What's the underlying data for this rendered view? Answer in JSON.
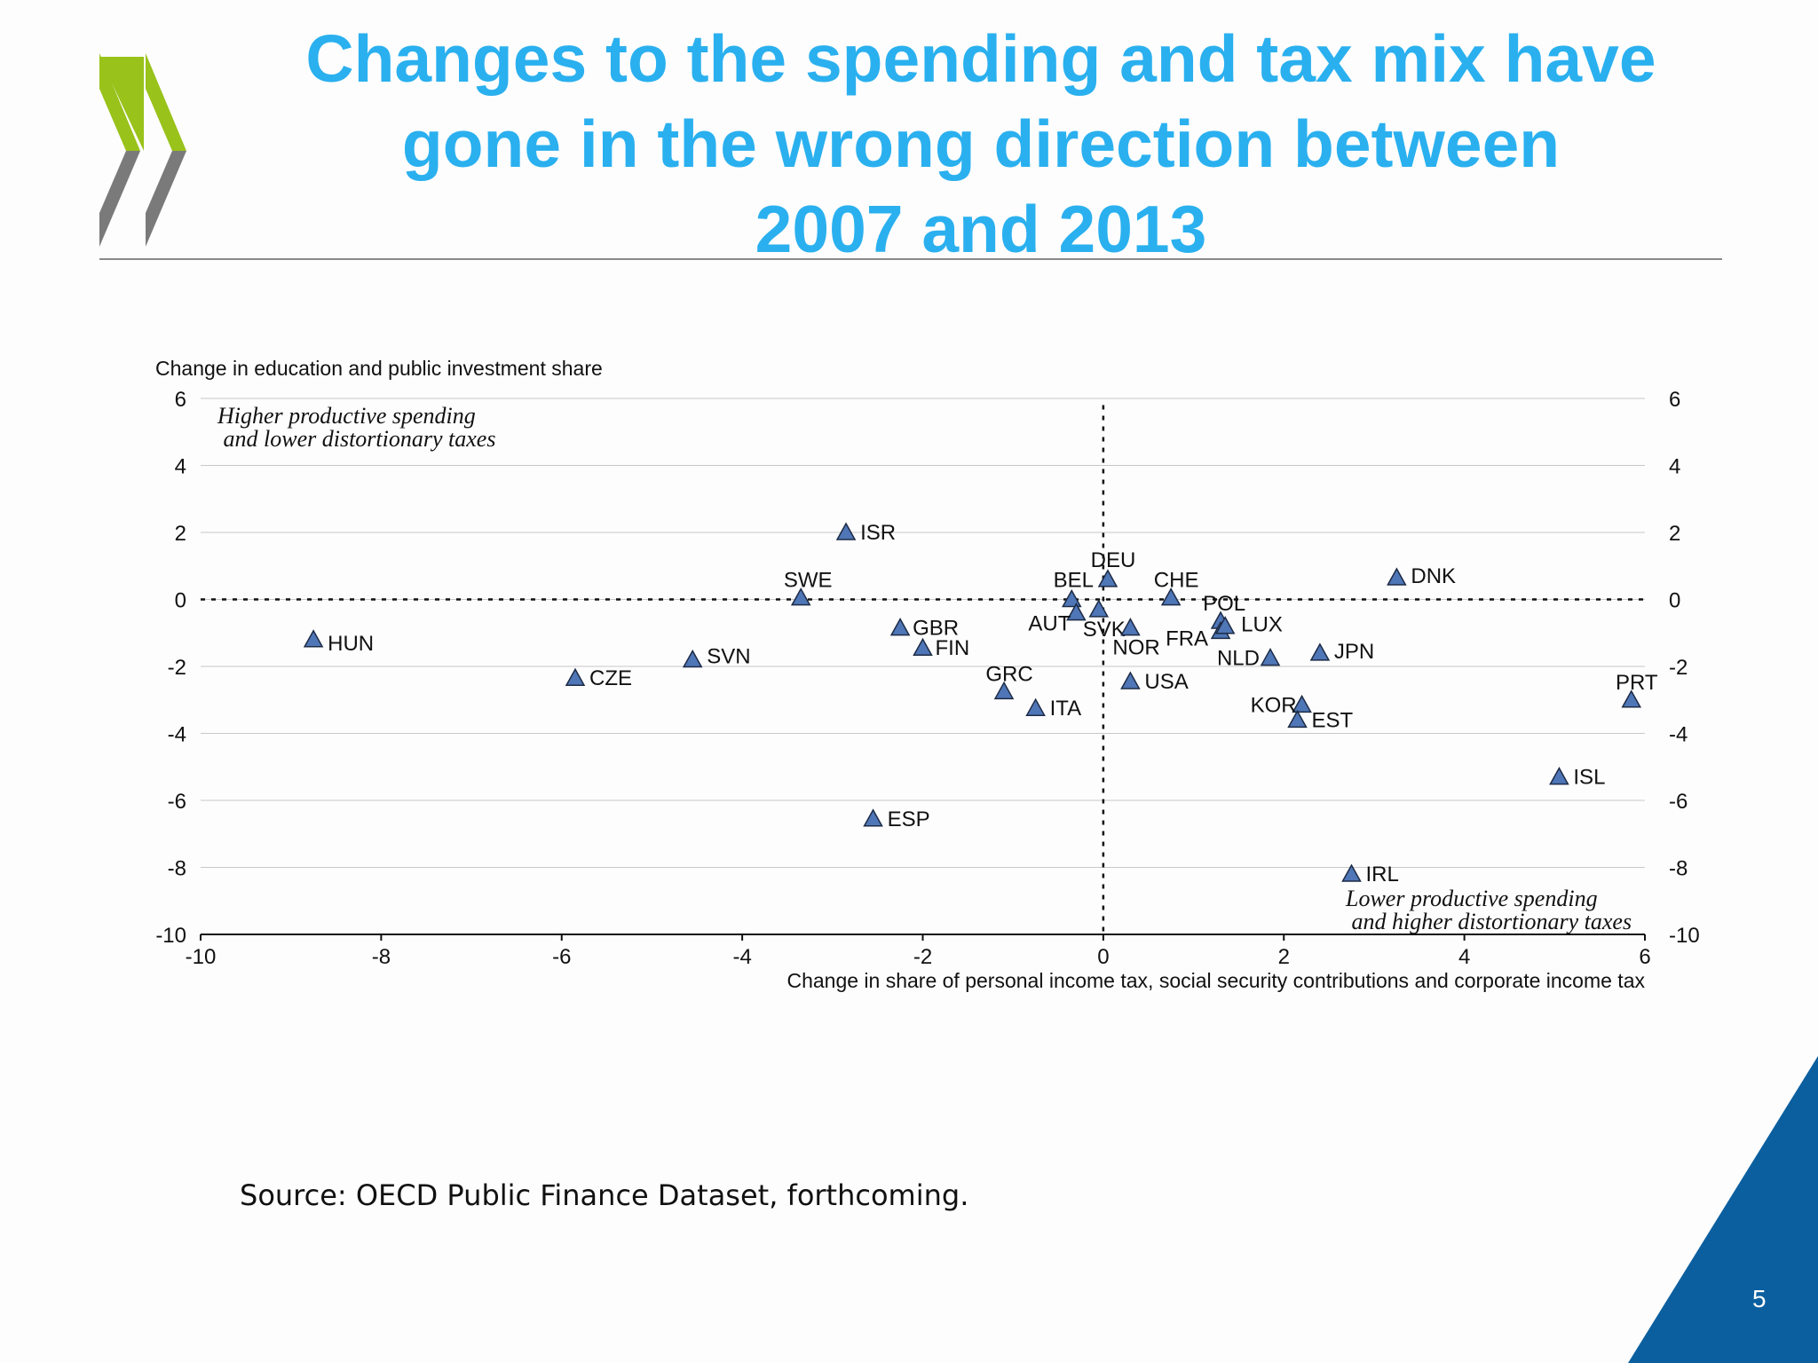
{
  "slide": {
    "title_lines": [
      "Changes to the spending and tax mix have",
      "gone in the wrong direction between",
      "2007 and 2013"
    ],
    "source": "Source: OECD Public Finance Dataset,  forthcoming.",
    "page_number": "5"
  },
  "colors": {
    "title": "#2ab0ef",
    "marker_fill": "#4f76b6",
    "marker_stroke": "#1d2b45",
    "logo_green": "#99c21a",
    "logo_gray": "#7a7a7a",
    "corner_blue": "#0b5f9f"
  },
  "icons": {
    "logo": "oecd-chevrons-logo"
  },
  "chart_data": {
    "type": "scatter",
    "ylabel": "Change in education and public investment share",
    "xlabel": "Change in share of personal income tax, social security contributions and corporate income tax",
    "xlim": [
      -10,
      6
    ],
    "ylim": [
      -10,
      6
    ],
    "xticks": [
      "-10",
      "-8",
      "-6",
      "-4",
      "-2",
      "0",
      "2",
      "4",
      "6"
    ],
    "yticks": [
      "6",
      "4",
      "2",
      "0",
      "-2",
      "-4",
      "-6",
      "-8",
      "-10"
    ],
    "grid": "horizontal",
    "reference_lines": {
      "x": 0,
      "y": 0
    },
    "annotations": [
      {
        "lines": [
          "Higher productive spending",
          " and lower distortionary taxes"
        ],
        "quadrant": "top-left"
      },
      {
        "lines": [
          "Lower productive spending",
          " and higher distortionary taxes"
        ],
        "quadrant": "bottom-right"
      }
    ],
    "points": [
      {
        "label": "HUN",
        "x": -8.75,
        "y": -1.2
      },
      {
        "label": "CZE",
        "x": -5.85,
        "y": -2.35
      },
      {
        "label": "SVN",
        "x": -4.55,
        "y": -1.8
      },
      {
        "label": "SWE",
        "x": -3.35,
        "y": 0.05
      },
      {
        "label": "ISR",
        "x": -2.85,
        "y": 2.0
      },
      {
        "label": "ESP",
        "x": -2.55,
        "y": -6.55
      },
      {
        "label": "GBR",
        "x": -2.25,
        "y": -0.85
      },
      {
        "label": "FIN",
        "x": -2.0,
        "y": -1.45
      },
      {
        "label": "GRC",
        "x": -1.1,
        "y": -2.75
      },
      {
        "label": "ITA",
        "x": -0.75,
        "y": -3.25
      },
      {
        "label": "BEL",
        "x": -0.35,
        "y": 0.0
      },
      {
        "label": "AUT",
        "x": -0.3,
        "y": -0.4
      },
      {
        "label": "DEU",
        "x": 0.05,
        "y": 0.6
      },
      {
        "label": "SVK",
        "x": -0.05,
        "y": -0.3
      },
      {
        "label": "NOR",
        "x": 0.3,
        "y": -0.85
      },
      {
        "label": "USA",
        "x": 0.3,
        "y": -2.45
      },
      {
        "label": "CHE",
        "x": 0.75,
        "y": 0.05
      },
      {
        "label": "POL",
        "x": 1.3,
        "y": -0.65
      },
      {
        "label": "FRA",
        "x": 1.3,
        "y": -0.95
      },
      {
        "label": "LUX",
        "x": 1.35,
        "y": -0.8
      },
      {
        "label": "NLD",
        "x": 1.85,
        "y": -1.75
      },
      {
        "label": "JPN",
        "x": 2.4,
        "y": -1.6
      },
      {
        "label": "KOR",
        "x": 2.2,
        "y": -3.15
      },
      {
        "label": "EST",
        "x": 2.15,
        "y": -3.6
      },
      {
        "label": "DNK",
        "x": 3.25,
        "y": 0.65
      },
      {
        "label": "IRL",
        "x": 2.75,
        "y": -8.2
      },
      {
        "label": "ISL",
        "x": 5.05,
        "y": -5.3
      },
      {
        "label": "PRT",
        "x": 5.85,
        "y": -3.0
      }
    ]
  }
}
